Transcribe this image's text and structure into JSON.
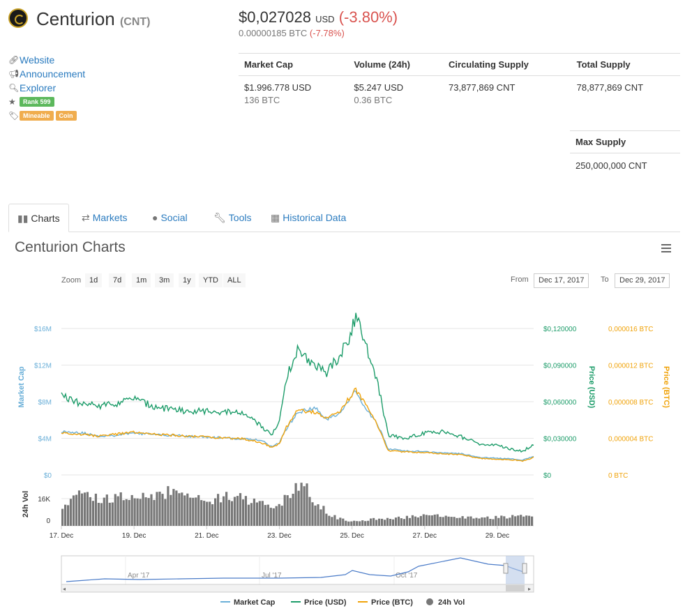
{
  "header": {
    "name": "Centurion",
    "symbol": "(CNT)",
    "price_usd": "$0,027028",
    "price_unit": "USD",
    "price_change": "(-3.80%)",
    "price_btc": "0.00000185 BTC",
    "price_btc_change": "(-7.78%)"
  },
  "links": {
    "website": "Website",
    "announcement": "Announcement",
    "explorer": "Explorer",
    "rank": "Rank 599",
    "tags": [
      "Mineable",
      "Coin"
    ]
  },
  "stats": {
    "headers": [
      "Market Cap",
      "Volume (24h)",
      "Circulating Supply",
      "Total Supply"
    ],
    "market_cap_usd": "$1.996.778 USD",
    "market_cap_btc": "136 BTC",
    "volume_usd": "$5.247 USD",
    "volume_btc": "0.36 BTC",
    "circulating_supply": "73,877,869 CNT",
    "total_supply": "78,877,869 CNT",
    "max_supply_label": "Max Supply",
    "max_supply": "250,000,000 CNT"
  },
  "tabs": [
    "Charts",
    "Markets",
    "Social",
    "Tools",
    "Historical Data"
  ],
  "chart": {
    "title": "Centurion Charts",
    "zoom_label": "Zoom",
    "zoom_buttons": [
      "1d",
      "7d",
      "1m",
      "3m",
      "1y",
      "YTD",
      "ALL"
    ],
    "from_label": "From",
    "from_date": "Dec 17, 2017",
    "to_label": "To",
    "to_date": "Dec 29, 2017",
    "navigator_labels": [
      "Apr '17",
      "Jul '17",
      "Oct '17"
    ]
  },
  "chart_data": {
    "type": "line",
    "x_ticks": [
      "17. Dec",
      "19. Dec",
      "21. Dec",
      "23. Dec",
      "25. Dec",
      "27. Dec",
      "29. Dec"
    ],
    "x_range_days": [
      "2017-12-17",
      "2017-12-29"
    ],
    "left_axis": {
      "label": "Market Cap",
      "ticks": [
        "$0",
        "$4M",
        "$8M",
        "$12M",
        "$16M"
      ],
      "range": [
        0,
        16000000
      ]
    },
    "right_axis_usd": {
      "label": "Price (USD)",
      "ticks": [
        "$0",
        "$0,030000",
        "$0,060000",
        "$0,090000",
        "$0,120000"
      ],
      "range": [
        0,
        0.12
      ]
    },
    "right_axis_btc": {
      "label": "Price (BTC)",
      "ticks": [
        "0 BTC",
        "0,000004 BTC",
        "0,000008 BTC",
        "0,000012 BTC",
        "0,000016 BTC"
      ],
      "range": [
        0,
        1.6e-05
      ]
    },
    "volume_axis": {
      "label": "24h Vol",
      "ticks": [
        "0",
        "16K"
      ]
    },
    "series": [
      {
        "name": "Market Cap",
        "color": "#6aafd8",
        "x": [
          17.0,
          17.5,
          18.0,
          18.5,
          19.0,
          19.5,
          20.0,
          20.5,
          21.0,
          21.5,
          22.0,
          22.5,
          22.8,
          23.0,
          23.2,
          23.5,
          24.0,
          24.3,
          24.6,
          24.9,
          25.1,
          25.4,
          25.7,
          26.0,
          26.5,
          27.0,
          27.5,
          28.0,
          28.5,
          29.0,
          29.5,
          29.7,
          30.0
        ],
        "values": [
          4700000,
          4600000,
          4200000,
          4300000,
          4500000,
          4400000,
          4300000,
          4200000,
          4100000,
          4000000,
          3900000,
          3800000,
          3000000,
          3500000,
          5000000,
          6800000,
          7200000,
          6000000,
          6500000,
          8000000,
          9000000,
          7000000,
          5500000,
          2800000,
          2600000,
          2500000,
          2400000,
          2300000,
          1900000,
          1800000,
          1700000,
          1600000,
          2000000
        ]
      },
      {
        "name": "Price (USD)",
        "color": "#1c9c69",
        "x": [
          17.0,
          17.5,
          18.0,
          18.5,
          19.0,
          19.5,
          20.0,
          20.5,
          21.0,
          21.5,
          22.0,
          22.5,
          22.8,
          23.0,
          23.2,
          23.5,
          24.0,
          24.3,
          24.6,
          24.9,
          25.1,
          25.4,
          25.7,
          26.0,
          26.5,
          27.0,
          27.5,
          28.0,
          28.5,
          29.0,
          29.5,
          29.7,
          30.0
        ],
        "values": [
          0.064,
          0.058,
          0.056,
          0.058,
          0.062,
          0.056,
          0.053,
          0.052,
          0.052,
          0.051,
          0.05,
          0.04,
          0.032,
          0.045,
          0.08,
          0.1,
          0.09,
          0.082,
          0.095,
          0.11,
          0.128,
          0.105,
          0.075,
          0.032,
          0.03,
          0.034,
          0.035,
          0.031,
          0.025,
          0.024,
          0.02,
          0.019,
          0.025
        ]
      },
      {
        "name": "Price (BTC)",
        "color": "#f0a30a",
        "x": [
          17.0,
          17.5,
          18.0,
          18.5,
          19.0,
          19.5,
          20.0,
          20.5,
          21.0,
          21.5,
          22.0,
          22.5,
          22.8,
          23.0,
          23.2,
          23.5,
          24.0,
          24.3,
          24.6,
          24.9,
          25.1,
          25.4,
          25.7,
          26.0,
          26.5,
          27.0,
          27.5,
          28.0,
          28.5,
          29.0,
          29.5,
          29.7,
          30.0
        ],
        "values": [
          4.5e-06,
          4.4e-06,
          4.2e-06,
          4.4e-06,
          4.6e-06,
          4.4e-06,
          4.3e-06,
          4.2e-06,
          4.1e-06,
          4e-06,
          3.9e-06,
          3.5e-06,
          3e-06,
          3.4e-06,
          5.2e-06,
          7e-06,
          6.8e-06,
          6.2e-06,
          6.6e-06,
          8.2e-06,
          9.3e-06,
          7.4e-06,
          5.4e-06,
          2.6e-06,
          2.5e-06,
          2.4e-06,
          2.3e-06,
          2.2e-06,
          1.8e-06,
          1.7e-06,
          1.6e-06,
          1.5e-06,
          1.9e-06
        ]
      },
      {
        "name": "24h Vol",
        "color": "#777777",
        "x": [
          17.0,
          17.5,
          18.0,
          18.5,
          19.0,
          19.5,
          20.0,
          20.5,
          21.0,
          21.5,
          22.0,
          22.5,
          23.0,
          23.3,
          23.6,
          24.0,
          24.3,
          24.6,
          25.0,
          25.5,
          26.0,
          26.5,
          27.0,
          27.5,
          28.0,
          28.5,
          29.0,
          29.5,
          30.0
        ],
        "values": [
          10000,
          15000,
          13000,
          13500,
          12000,
          14500,
          16000,
          13000,
          12000,
          14500,
          12500,
          10000,
          9500,
          17000,
          20000,
          11000,
          6000,
          3500,
          2000,
          3000,
          3500,
          4000,
          5000,
          4500,
          4000,
          3500,
          4000,
          4500,
          5000
        ]
      }
    ],
    "legend": [
      "Market Cap",
      "Price (USD)",
      "Price (BTC)",
      "24h Vol"
    ],
    "legend_position": "bottom"
  },
  "colors": {
    "market_cap": "#6aafd8",
    "price_usd": "#1c9c69",
    "price_btc": "#f0a30a",
    "volume": "#777777",
    "link": "#2a7bbf",
    "negative": "#d9534f"
  }
}
